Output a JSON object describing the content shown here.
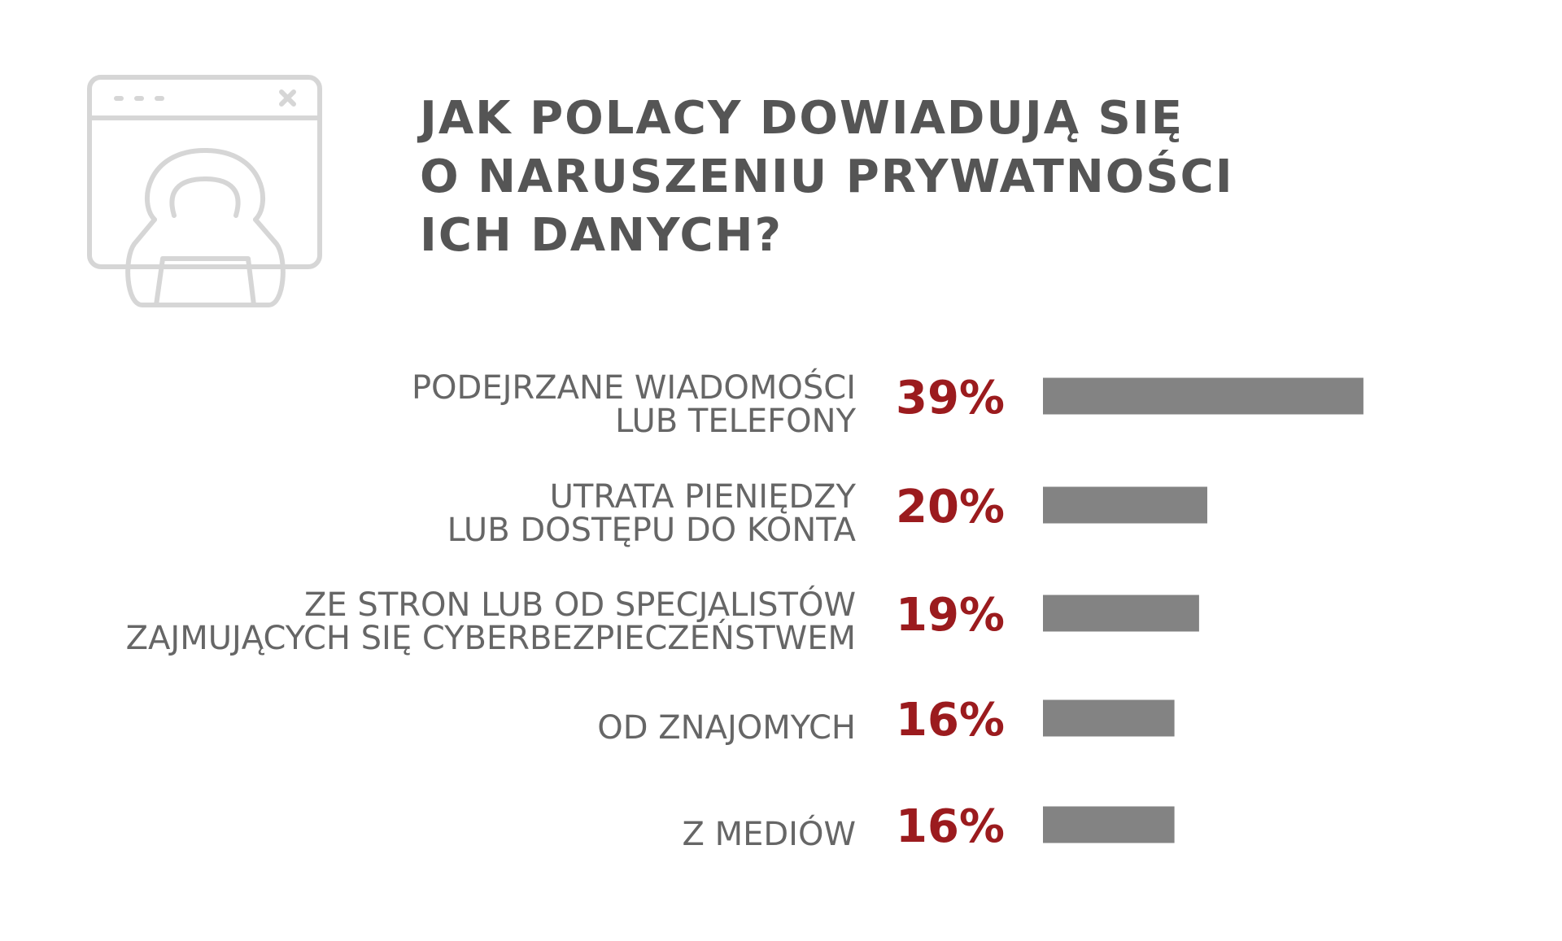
{
  "chart_data": {
    "type": "bar",
    "title": [
      "JAK POLACY DOWIADUJĄ SIĘ",
      "O NARUSZENIU PRYWATNOŚCI",
      "ICH DANYCH?"
    ],
    "categories": [
      [
        "PODEJRZANE WIADOMOŚCI",
        "LUB TELEFONY"
      ],
      [
        "UTRATA PIENIĘDZY",
        "LUB DOSTĘPU DO KONTA"
      ],
      [
        "ZE STRON LUB OD SPECJALISTÓW",
        "ZAJMUJĄCYCH SIĘ CYBERBEZPIECZEŃSTWEM"
      ],
      [
        "OD ZNAJOMYCH"
      ],
      [
        "Z MEDIÓW"
      ]
    ],
    "values": [
      39,
      20,
      19,
      16,
      16
    ],
    "value_labels": [
      "39%",
      "20%",
      "19%",
      "16%",
      "16%"
    ],
    "color": "#838383",
    "value_label_color": "#9b1b1e"
  }
}
